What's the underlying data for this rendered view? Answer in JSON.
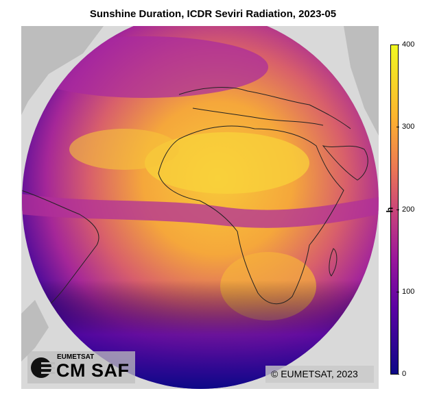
{
  "title": "Sunshine Duration, ICDR Seviri Radiation, 2023-05",
  "colorbar": {
    "label": "h",
    "ticks": [
      "0",
      "100",
      "200",
      "300",
      "400"
    ],
    "range": [
      0,
      400
    ],
    "colormap": "plasma",
    "colors": [
      "#0d0887",
      "#5b02a3",
      "#9a179b",
      "#cb4679",
      "#eb7655",
      "#fdb32f",
      "#f0f921"
    ]
  },
  "logo": {
    "top_text": "EUMETSAT",
    "main_text": "CM SAF",
    "icon": "cmsaf-logo-icon"
  },
  "copyright": "© EUMETSAT, 2023",
  "colors": {
    "background_land": "#bdbdbd",
    "outside_disk": "#d9d9d9",
    "coastline": "#222222"
  }
}
